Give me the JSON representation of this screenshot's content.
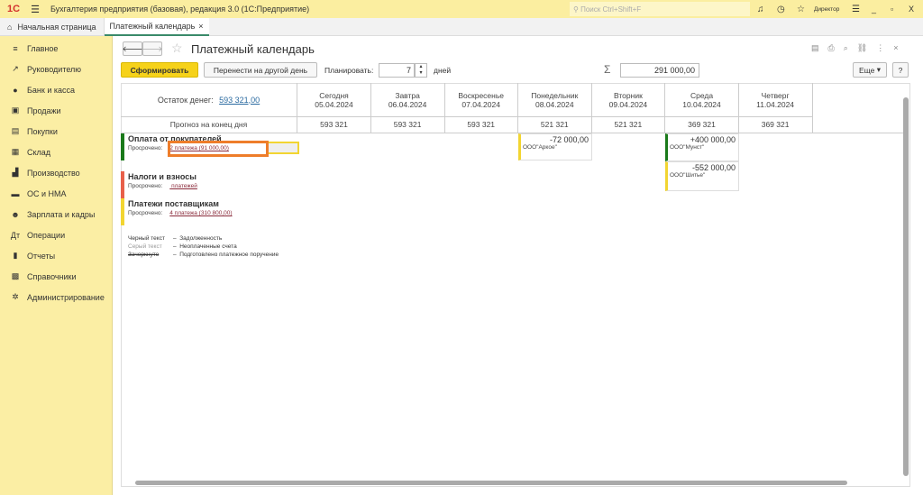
{
  "app": {
    "logo": "1С",
    "title": "Бухгалтерия предприятия (базовая), редакция 3.0  (1С:Предприятие)",
    "search_placeholder": "Поиск Ctrl+Shift+F",
    "user": "Директор"
  },
  "tabs": [
    {
      "label": "Начальная страница"
    },
    {
      "label": "Платежный календарь"
    }
  ],
  "sidebar": {
    "items": [
      {
        "label": "Главное",
        "icon": "≡"
      },
      {
        "label": "Руководителю",
        "icon": "↗"
      },
      {
        "label": "Банк и касса",
        "icon": "●"
      },
      {
        "label": "Продажи",
        "icon": "▣"
      },
      {
        "label": "Покупки",
        "icon": "▤"
      },
      {
        "label": "Склад",
        "icon": "▦"
      },
      {
        "label": "Производство",
        "icon": "▟"
      },
      {
        "label": "ОС и НМА",
        "icon": "▬"
      },
      {
        "label": "Зарплата и кадры",
        "icon": "☻"
      },
      {
        "label": "Операции",
        "icon": "Дт"
      },
      {
        "label": "Отчеты",
        "icon": "▮"
      },
      {
        "label": "Справочники",
        "icon": "▩"
      },
      {
        "label": "Администрирование",
        "icon": "✲"
      }
    ]
  },
  "form": {
    "title": "Платежный календарь",
    "generate": "Сформировать",
    "move": "Перенести на другой день",
    "plan_label": "Планировать:",
    "plan_value": "7",
    "days": "дней",
    "sum": "291 000,00",
    "more": "Еще",
    "help": "?"
  },
  "table": {
    "balance_label": "Остаток денег:",
    "balance_value": "593 321,00",
    "forecast_label": "Прогноз на конец дня",
    "columns": [
      {
        "day": "Сегодня",
        "date": "05.04.2024",
        "forecast": "593 321"
      },
      {
        "day": "Завтра",
        "date": "06.04.2024",
        "forecast": "593 321"
      },
      {
        "day": "Воскресенье",
        "date": "07.04.2024",
        "forecast": "593 321"
      },
      {
        "day": "Понедельник",
        "date": "08.04.2024",
        "forecast": "521 321"
      },
      {
        "day": "Вторник",
        "date": "09.04.2024",
        "forecast": "521 321"
      },
      {
        "day": "Среда",
        "date": "10.04.2024",
        "forecast": "369 321"
      },
      {
        "day": "Четверг",
        "date": "11.04.2024",
        "forecast": "369 321"
      }
    ],
    "sections": [
      {
        "title": "Оплата от покупателей",
        "overdue_label": "Просрочено:",
        "overdue": "2 платежа (91 000,00)",
        "color": "#1a7a1a"
      },
      {
        "title": "Налоги и взносы",
        "overdue_label": "Просрочено:",
        "overdue": " платежей",
        "color": "#e8604a"
      },
      {
        "title": "Платежи поставщикам",
        "overdue_label": "Просрочено:",
        "overdue": "4 платежа (310 800,00)",
        "color": "#f2d531"
      }
    ],
    "payments": [
      {
        "amount": "-72 000,00",
        "counterparty": "ООО\"Аркое\""
      },
      {
        "amount": "+400 000,00",
        "counterparty": "ООО\"Мунст\""
      },
      {
        "amount": "-552 000,00",
        "counterparty": "ООО\"Шитье\""
      }
    ],
    "legend": [
      {
        "key": "Черный текст",
        "value": "Задолженность"
      },
      {
        "key": "Серый текст",
        "value": "Неоплаченные счета"
      },
      {
        "key": "Зачеркнуто",
        "value": "Подготовлено платежное поручение"
      }
    ]
  }
}
